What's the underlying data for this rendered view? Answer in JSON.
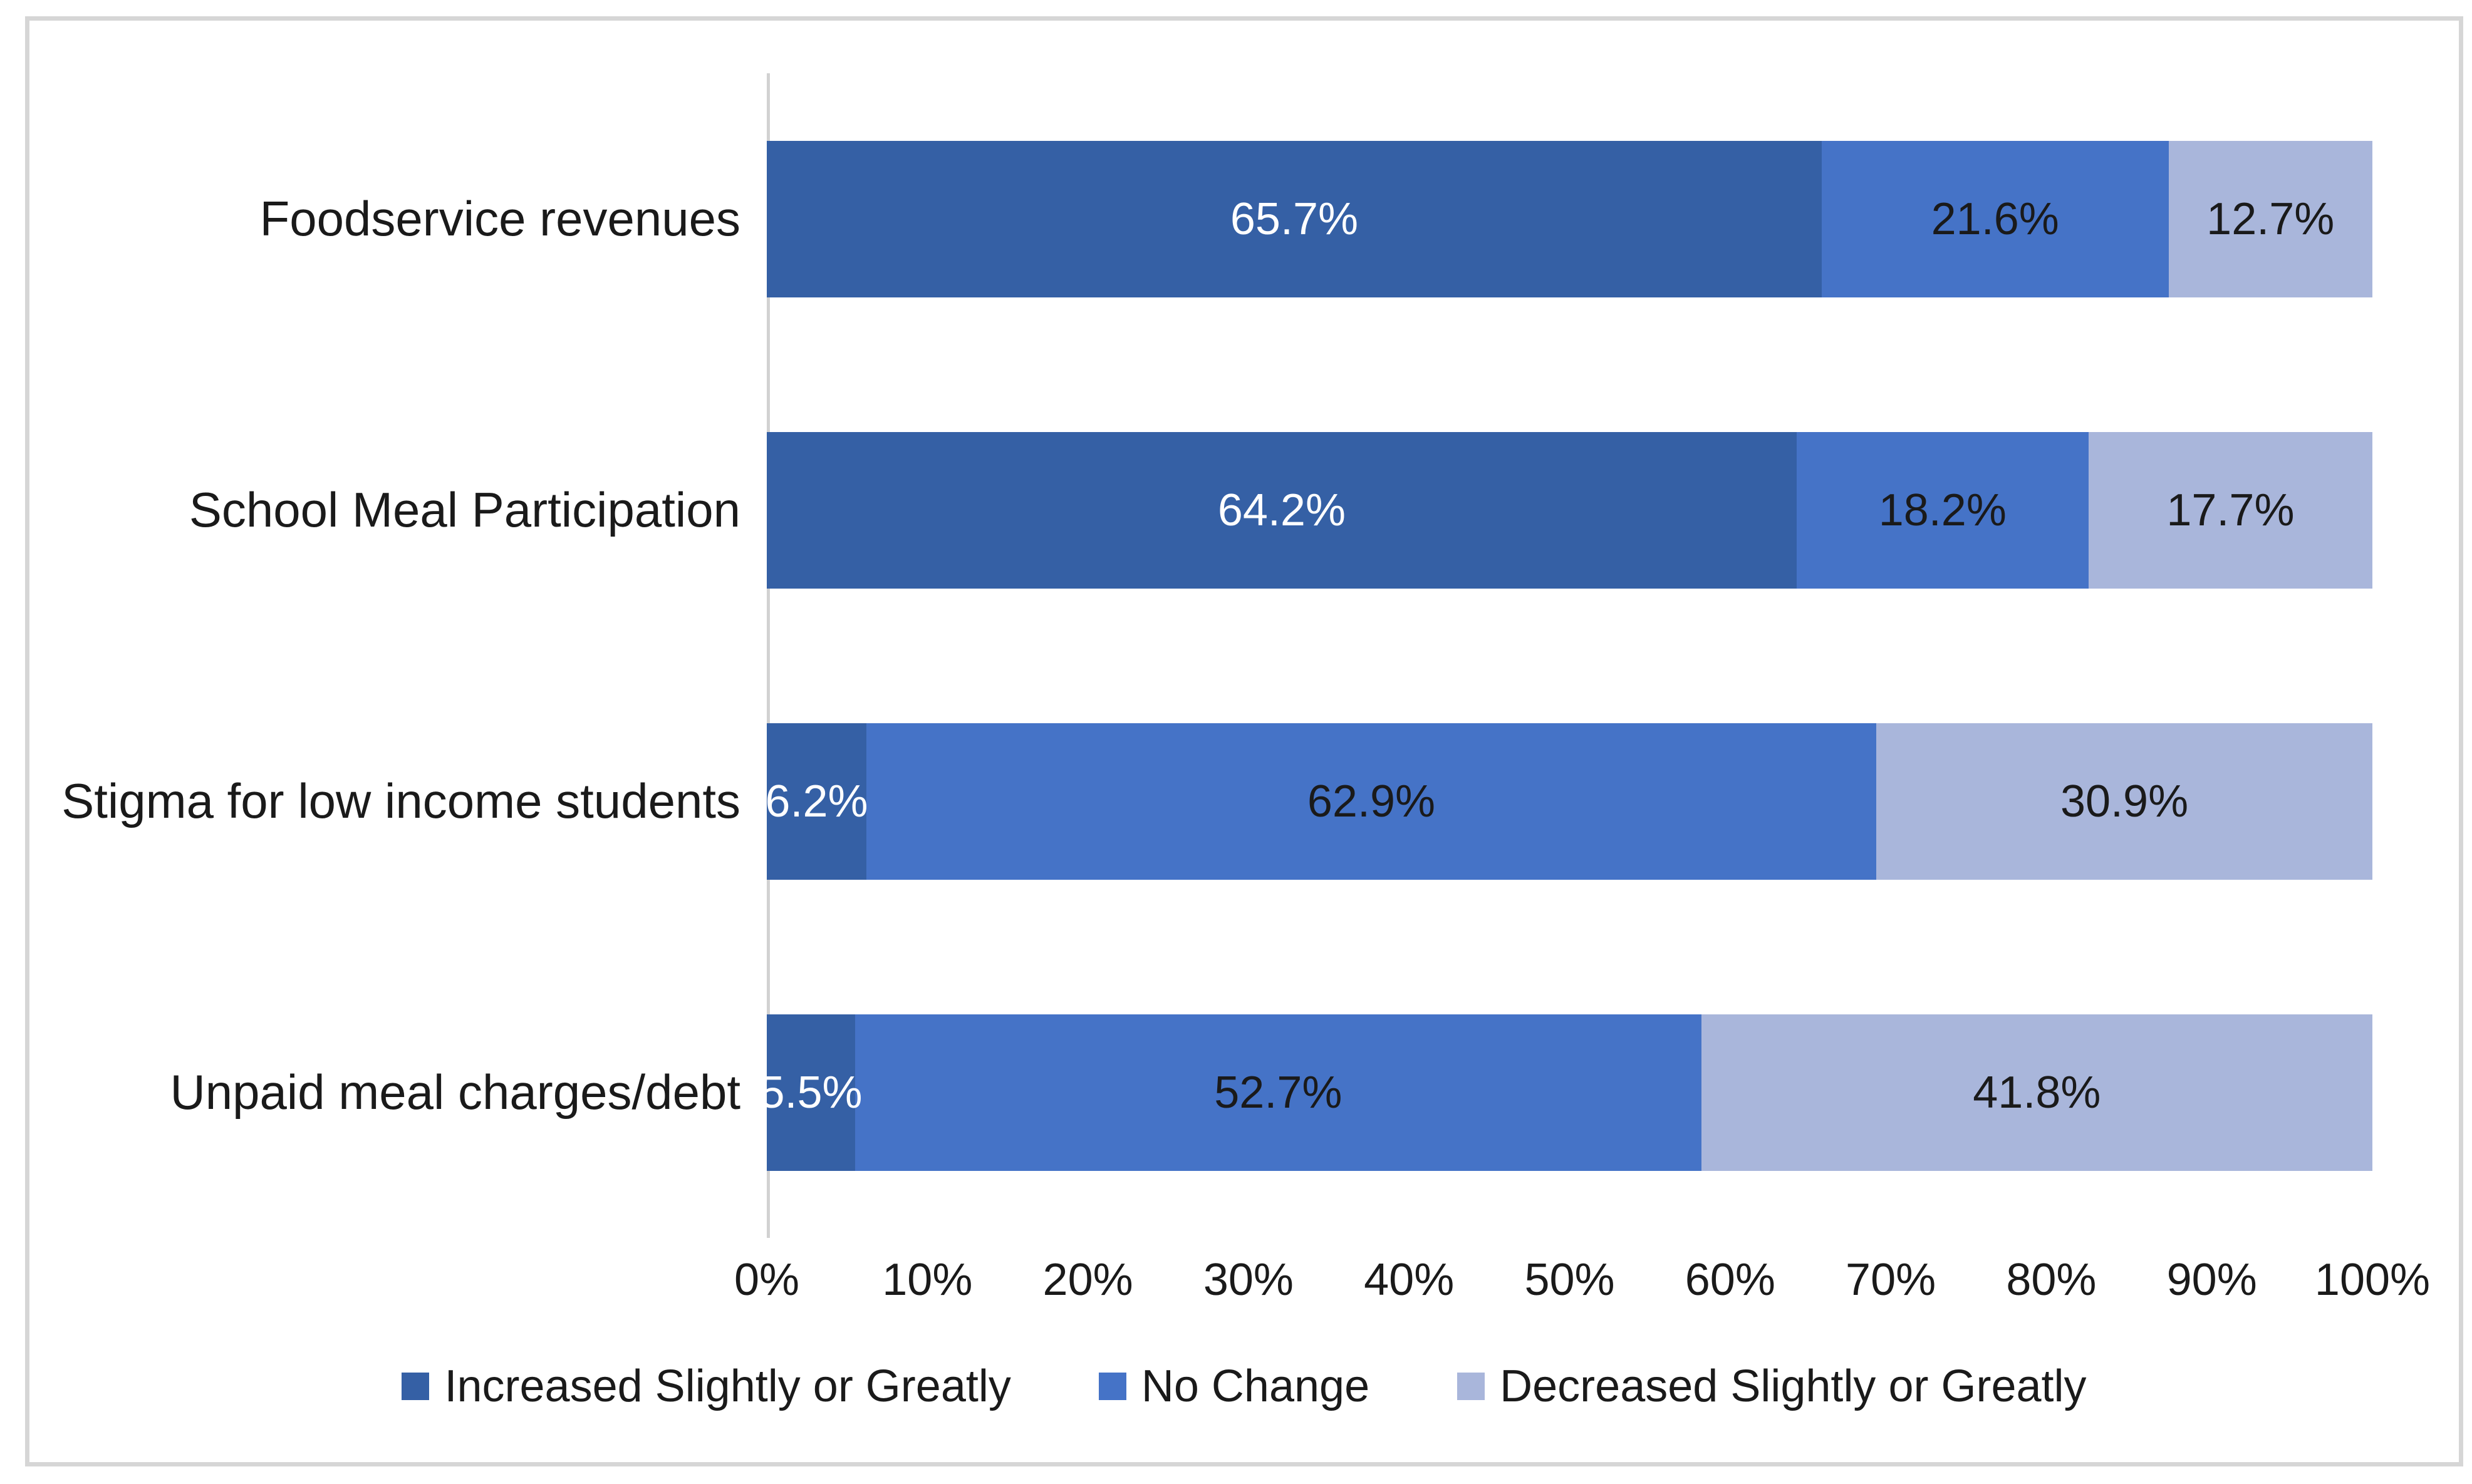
{
  "chart_data": {
    "type": "bar",
    "orientation": "horizontal",
    "stacked": true,
    "title": "",
    "xlabel": "",
    "ylabel": "",
    "xlim": [
      0,
      100
    ],
    "grid": false,
    "legend_position": "bottom",
    "categories": [
      "Foodservice revenues",
      "School Meal Participation",
      "Stigma for low income students",
      "Unpaid meal charges/debt"
    ],
    "series": [
      {
        "name": "Increased Slightly or Greatly",
        "color": "#3560A5",
        "label_color": "#ffffff",
        "values": [
          65.7,
          64.2,
          6.2,
          5.5
        ]
      },
      {
        "name": "No Change",
        "color": "#4573C7",
        "label_color": "#1a1a1a",
        "values": [
          21.6,
          18.2,
          62.9,
          52.7
        ]
      },
      {
        "name": "Decreased Slightly or Greatly",
        "color": "#A9B6DB",
        "label_color": "#1a1a1a",
        "values": [
          12.7,
          17.7,
          30.9,
          41.8
        ]
      }
    ],
    "data_labels": [
      [
        "65.7%",
        "21.6%",
        "12.7%"
      ],
      [
        "64.2%",
        "18.2%",
        "17.7%"
      ],
      [
        "6.2%",
        "62.9%",
        "30.9%"
      ],
      [
        "5.5%",
        "52.7%",
        "41.8%"
      ]
    ],
    "x_ticks": [
      "0%",
      "10%",
      "20%",
      "30%",
      "40%",
      "50%",
      "60%",
      "70%",
      "80%",
      "90%",
      "100%"
    ]
  },
  "colors": {
    "frame_border": "#d6d6d6",
    "axis_line": "#d2d2d2",
    "text": "#1a1a1a",
    "background": "#ffffff"
  }
}
